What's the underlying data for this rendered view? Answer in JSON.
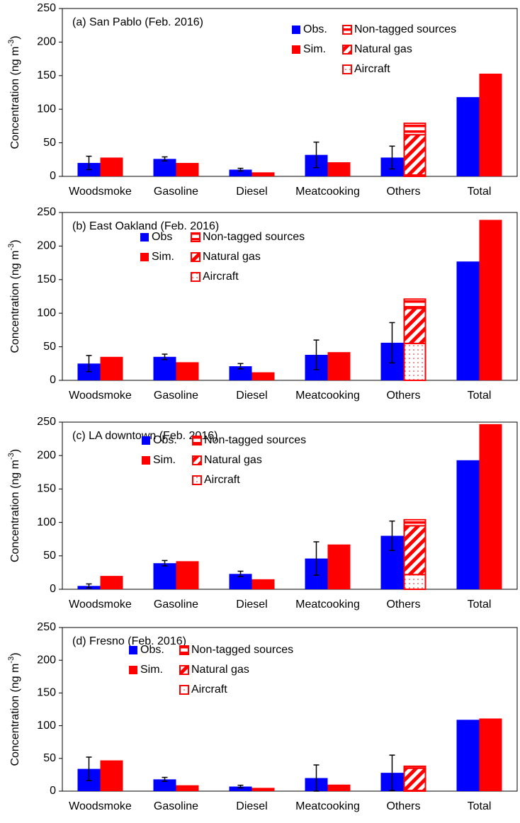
{
  "chart_data": [
    {
      "type": "bar",
      "title": "(a) San Pablo (Feb. 2016)",
      "y_label": {
        "text": "Concentration (ng m",
        "superscript": "-3",
        "end": ")"
      },
      "categories": [
        "Woodsmoke",
        "Gasoline",
        "Diesel",
        "Meatcooking",
        "Others",
        "Total"
      ],
      "ylim": [
        0,
        250
      ],
      "yticks": [
        0,
        50,
        100,
        150,
        200,
        250
      ],
      "series": [
        {
          "name": "Obs.",
          "color": "#0000ff",
          "pattern": "solid",
          "values": [
            20,
            26,
            10,
            32,
            28,
            118
          ],
          "errors": [
            10,
            3,
            2,
            19,
            17,
            null
          ]
        },
        {
          "name": "Sim.",
          "color": "#ff0000",
          "pattern": "solid",
          "values": [
            28,
            20,
            6,
            21,
            null,
            153
          ]
        },
        {
          "name": "Non-tagged sources",
          "color": "#ff0000",
          "pattern": "horizontal",
          "stacked": true,
          "values": [
            null,
            null,
            null,
            null,
            17,
            null
          ]
        },
        {
          "name": "Natural gas",
          "color": "#ff0000",
          "pattern": "diagonal",
          "stacked": true,
          "values": [
            null,
            null,
            null,
            null,
            60,
            null
          ]
        },
        {
          "name": "Aircraft",
          "color": "#ff0000",
          "pattern": "dots",
          "stacked": true,
          "values": [
            null,
            null,
            null,
            null,
            2,
            null
          ]
        }
      ]
    },
    {
      "type": "bar",
      "title": "(b) East Oakland (Feb. 2016)",
      "y_label": {
        "text": "Concentration (ng m",
        "superscript": "-3",
        "end": ")"
      },
      "categories": [
        "Woodsmoke",
        "Gasoline",
        "Diesel",
        "Meatcooking",
        "Others",
        "Total"
      ],
      "ylim": [
        0,
        250
      ],
      "yticks": [
        0,
        50,
        100,
        150,
        200,
        250
      ],
      "series": [
        {
          "name": "Obs",
          "color": "#0000ff",
          "pattern": "solid",
          "values": [
            25,
            35,
            21,
            38,
            56,
            177
          ],
          "errors": [
            12,
            4,
            4,
            22,
            30,
            null
          ]
        },
        {
          "name": "Sim.",
          "color": "#ff0000",
          "pattern": "solid",
          "values": [
            35,
            27,
            12,
            42,
            null,
            239
          ]
        },
        {
          "name": "Non-tagged sources",
          "color": "#ff0000",
          "pattern": "horizontal",
          "stacked": true,
          "values": [
            null,
            null,
            null,
            null,
            14,
            null
          ]
        },
        {
          "name": "Natural gas",
          "color": "#ff0000",
          "pattern": "diagonal",
          "stacked": true,
          "values": [
            null,
            null,
            null,
            null,
            52,
            null
          ]
        },
        {
          "name": "Aircraft",
          "color": "#ff0000",
          "pattern": "dots",
          "stacked": true,
          "values": [
            null,
            null,
            null,
            null,
            55,
            null
          ]
        }
      ]
    },
    {
      "type": "bar",
      "title": "(c) LA downtown (Feb. 2016)",
      "y_label": {
        "text": "Concentration (ng m",
        "superscript": "-3",
        "end": ")"
      },
      "categories": [
        "Woodsmoke",
        "Gasoline",
        "Diesel",
        "Meatcooking",
        "Others",
        "Total"
      ],
      "ylim": [
        0,
        250
      ],
      "yticks": [
        0,
        50,
        100,
        150,
        200,
        250
      ],
      "series": [
        {
          "name": "Obs.",
          "color": "#0000ff",
          "pattern": "solid",
          "values": [
            5,
            39,
            23,
            46,
            80,
            193
          ],
          "errors": [
            3,
            4,
            4,
            25,
            22,
            null
          ]
        },
        {
          "name": "Sim.",
          "color": "#ff0000",
          "pattern": "solid",
          "values": [
            20,
            42,
            15,
            67,
            null,
            247
          ]
        },
        {
          "name": "Non-tagged sources",
          "color": "#ff0000",
          "pattern": "horizontal",
          "stacked": true,
          "values": [
            null,
            null,
            null,
            null,
            9,
            null
          ]
        },
        {
          "name": "Natural gas",
          "color": "#ff0000",
          "pattern": "diagonal",
          "stacked": true,
          "values": [
            null,
            null,
            null,
            null,
            73,
            null
          ]
        },
        {
          "name": "Aircraft",
          "color": "#ff0000",
          "pattern": "dots",
          "stacked": true,
          "values": [
            null,
            null,
            null,
            null,
            22,
            null
          ]
        }
      ]
    },
    {
      "type": "bar",
      "title": "(d) Fresno (Feb. 2016)",
      "y_label": {
        "text": "Concentration (ng m",
        "superscript": "-3",
        "end": ")"
      },
      "categories": [
        "Woodsmoke",
        "Gasoline",
        "Diesel",
        "Meatcooking",
        "Others",
        "Total"
      ],
      "ylim": [
        0,
        250
      ],
      "yticks": [
        0,
        50,
        100,
        150,
        200,
        250
      ],
      "series": [
        {
          "name": "Obs.",
          "color": "#0000ff",
          "pattern": "solid",
          "values": [
            34,
            18,
            7,
            20,
            28,
            109
          ],
          "errors": [
            18,
            3,
            2,
            20,
            27,
            null
          ]
        },
        {
          "name": "Sim.",
          "color": "#ff0000",
          "pattern": "solid",
          "values": [
            47,
            9,
            5,
            10,
            null,
            111
          ]
        },
        {
          "name": "Non-tagged sources",
          "color": "#ff0000",
          "pattern": "horizontal",
          "stacked": true,
          "values": [
            null,
            null,
            null,
            null,
            3,
            null
          ]
        },
        {
          "name": "Natural gas",
          "color": "#ff0000",
          "pattern": "diagonal",
          "stacked": true,
          "values": [
            null,
            null,
            null,
            null,
            34,
            null
          ]
        },
        {
          "name": "Aircraft",
          "color": "#ff0000",
          "pattern": "dots",
          "stacked": true,
          "values": [
            null,
            null,
            null,
            null,
            1,
            null
          ]
        }
      ]
    }
  ]
}
